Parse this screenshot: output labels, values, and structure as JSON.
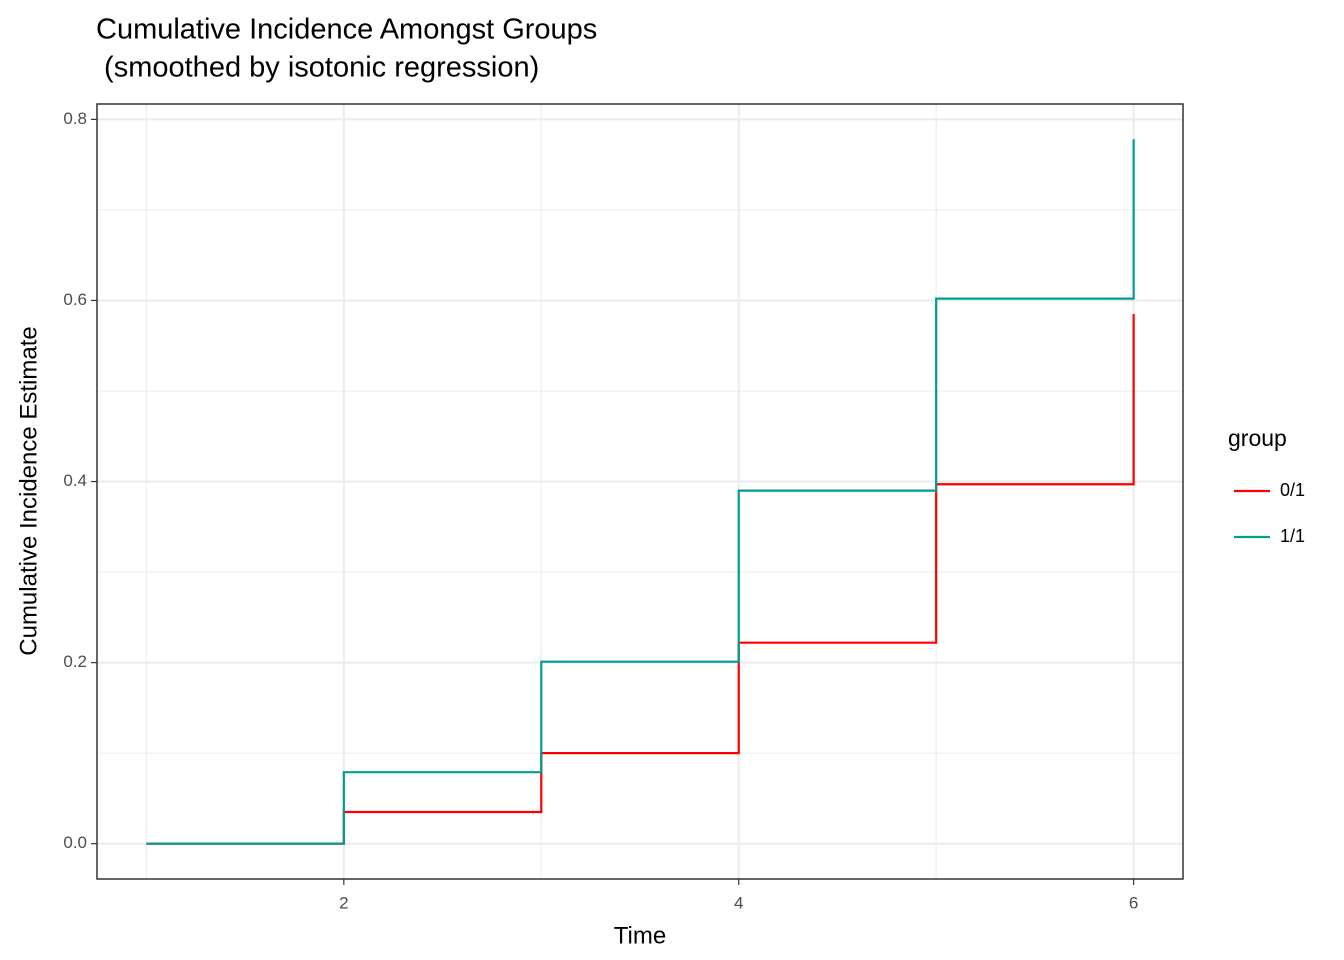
{
  "chart_data": {
    "type": "step",
    "title": [
      "Cumulative Incidence Amongst Groups",
      " (smoothed by isotonic regression)"
    ],
    "x_label": "Time",
    "y_label": "Cumulative Incidence Estimate",
    "legend_title": "group",
    "x": [
      1,
      2,
      3,
      4,
      5,
      6
    ],
    "series": [
      {
        "name": "0/1",
        "color": "#ff0000",
        "values": [
          0,
          0.035,
          0.1,
          0.222,
          0.397,
          0.585
        ]
      },
      {
        "name": "1/1",
        "color": "#009e8c",
        "values": [
          0,
          0.079,
          0.201,
          0.39,
          0.602,
          0.778
        ]
      }
    ],
    "xlim": [
      0.75,
      6.25
    ],
    "ylim": [
      -0.039,
      0.817
    ],
    "xticks": [
      2,
      4,
      6
    ],
    "yticks": [
      {
        "value": 0,
        "label": "0.0"
      },
      0.2,
      0.4,
      0.6,
      0.8
    ],
    "minor_xticks": [
      1,
      3,
      5
    ],
    "minor_yticks": [
      0.1,
      0.3,
      0.5,
      0.7
    ],
    "grid": true,
    "legend": "right"
  }
}
